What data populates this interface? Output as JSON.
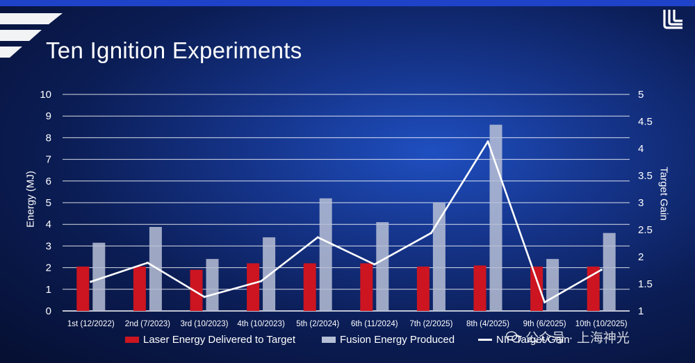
{
  "slide": {
    "title": "Ten Ignition Experiments",
    "logo": "llnl-logo-icon",
    "watermark": "公众号 · 上海神光"
  },
  "chart_data": {
    "type": "bar",
    "title": "Ten Ignition Experiments",
    "categories": [
      "1st (12/2022)",
      "2nd (7/2023)",
      "3rd (10/2023)",
      "4th (10/2023)",
      "5th (2/2024)",
      "6th (11/2024)",
      "7th (2/2025)",
      "8th (4/2025)",
      "9th (6/2025)",
      "10th (10/2025)"
    ],
    "ylabel": "Energy (MJ)",
    "y2label": "Target Gain",
    "ylim": [
      0,
      10
    ],
    "y2lim": [
      1,
      5
    ],
    "yticks": [
      "0",
      "1",
      "2",
      "3",
      "4",
      "5",
      "6",
      "7",
      "8",
      "9",
      "10"
    ],
    "y2ticks": [
      "1",
      "1.5",
      "2",
      "2.5",
      "3",
      "3.5",
      "4",
      "4.5",
      "5"
    ],
    "grid": true,
    "legend_position": "bottom",
    "series": [
      {
        "name": "Laser Energy Delivered to Target",
        "type": "bar",
        "axis": "left",
        "color": "#cc1520",
        "values": [
          2.05,
          2.05,
          1.9,
          2.2,
          2.2,
          2.2,
          2.05,
          2.1,
          2.05,
          2.05
        ]
      },
      {
        "name": "Fusion Energy Produced",
        "type": "bar",
        "axis": "left",
        "color": "#b7bfd6",
        "values": [
          3.15,
          3.88,
          2.4,
          3.4,
          5.2,
          4.1,
          5.0,
          8.6,
          2.4,
          3.6
        ]
      },
      {
        "name": "NIF Target Gain",
        "type": "line",
        "axis": "right",
        "color": "#ffffff",
        "values": [
          1.54,
          1.89,
          1.26,
          1.55,
          2.36,
          1.86,
          2.44,
          4.13,
          1.16,
          1.76
        ]
      }
    ]
  }
}
